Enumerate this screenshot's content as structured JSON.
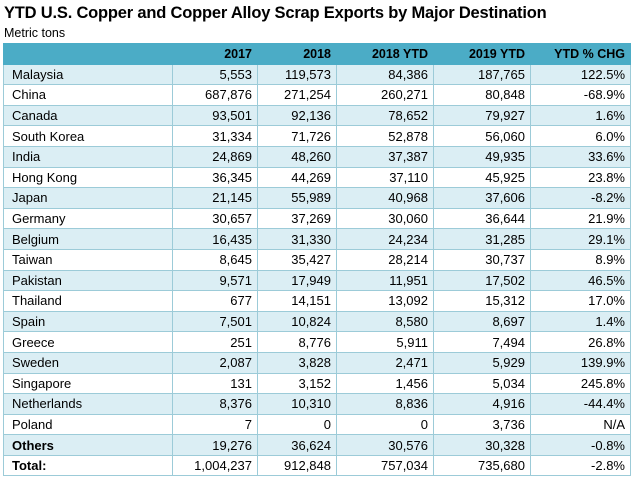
{
  "chart_data": {
    "type": "table",
    "title": "YTD U.S. Copper and Copper Alloy Scrap Exports by Major Destination",
    "subtitle": "Metric tons",
    "columns": [
      "",
      "2017",
      "2018",
      "2018 YTD",
      "2019 YTD",
      "YTD % CHG"
    ],
    "rows": [
      [
        "Malaysia",
        "5,553",
        "119,573",
        "84,386",
        "187,765",
        "122.5%"
      ],
      [
        "China",
        "687,876",
        "271,254",
        "260,271",
        "80,848",
        "-68.9%"
      ],
      [
        "Canada",
        "93,501",
        "92,136",
        "78,652",
        "79,927",
        "1.6%"
      ],
      [
        "South Korea",
        "31,334",
        "71,726",
        "52,878",
        "56,060",
        "6.0%"
      ],
      [
        "India",
        "24,869",
        "48,260",
        "37,387",
        "49,935",
        "33.6%"
      ],
      [
        "Hong Kong",
        "36,345",
        "44,269",
        "37,110",
        "45,925",
        "23.8%"
      ],
      [
        "Japan",
        "21,145",
        "55,989",
        "40,968",
        "37,606",
        "-8.2%"
      ],
      [
        "Germany",
        "30,657",
        "37,269",
        "30,060",
        "36,644",
        "21.9%"
      ],
      [
        "Belgium",
        "16,435",
        "31,330",
        "24,234",
        "31,285",
        "29.1%"
      ],
      [
        "Taiwan",
        "8,645",
        "35,427",
        "28,214",
        "30,737",
        "8.9%"
      ],
      [
        "Pakistan",
        "9,571",
        "17,949",
        "11,951",
        "17,502",
        "46.5%"
      ],
      [
        "Thailand",
        "677",
        "14,151",
        "13,092",
        "15,312",
        "17.0%"
      ],
      [
        "Spain",
        "7,501",
        "10,824",
        "8,580",
        "8,697",
        "1.4%"
      ],
      [
        "Greece",
        "251",
        "8,776",
        "5,911",
        "7,494",
        "26.8%"
      ],
      [
        "Sweden",
        "2,087",
        "3,828",
        "2,471",
        "5,929",
        "139.9%"
      ],
      [
        "Singapore",
        "131",
        "3,152",
        "1,456",
        "5,034",
        "245.8%"
      ],
      [
        "Netherlands",
        "8,376",
        "10,310",
        "8,836",
        "4,916",
        "-44.4%"
      ],
      [
        "Poland",
        "7",
        "0",
        "0",
        "3,736",
        "N/A"
      ],
      [
        "Others",
        "19,276",
        "36,624",
        "30,576",
        "30,328",
        "-0.8%"
      ],
      [
        "Total:",
        "1,004,237",
        "912,848",
        "757,034",
        "735,680",
        "-2.8%"
      ]
    ],
    "bold_rows": [
      "Others",
      "Total:"
    ],
    "colors": {
      "header": "#4bacc6",
      "alt_row": "#dbeef4",
      "border": "#9ccbd8"
    }
  }
}
